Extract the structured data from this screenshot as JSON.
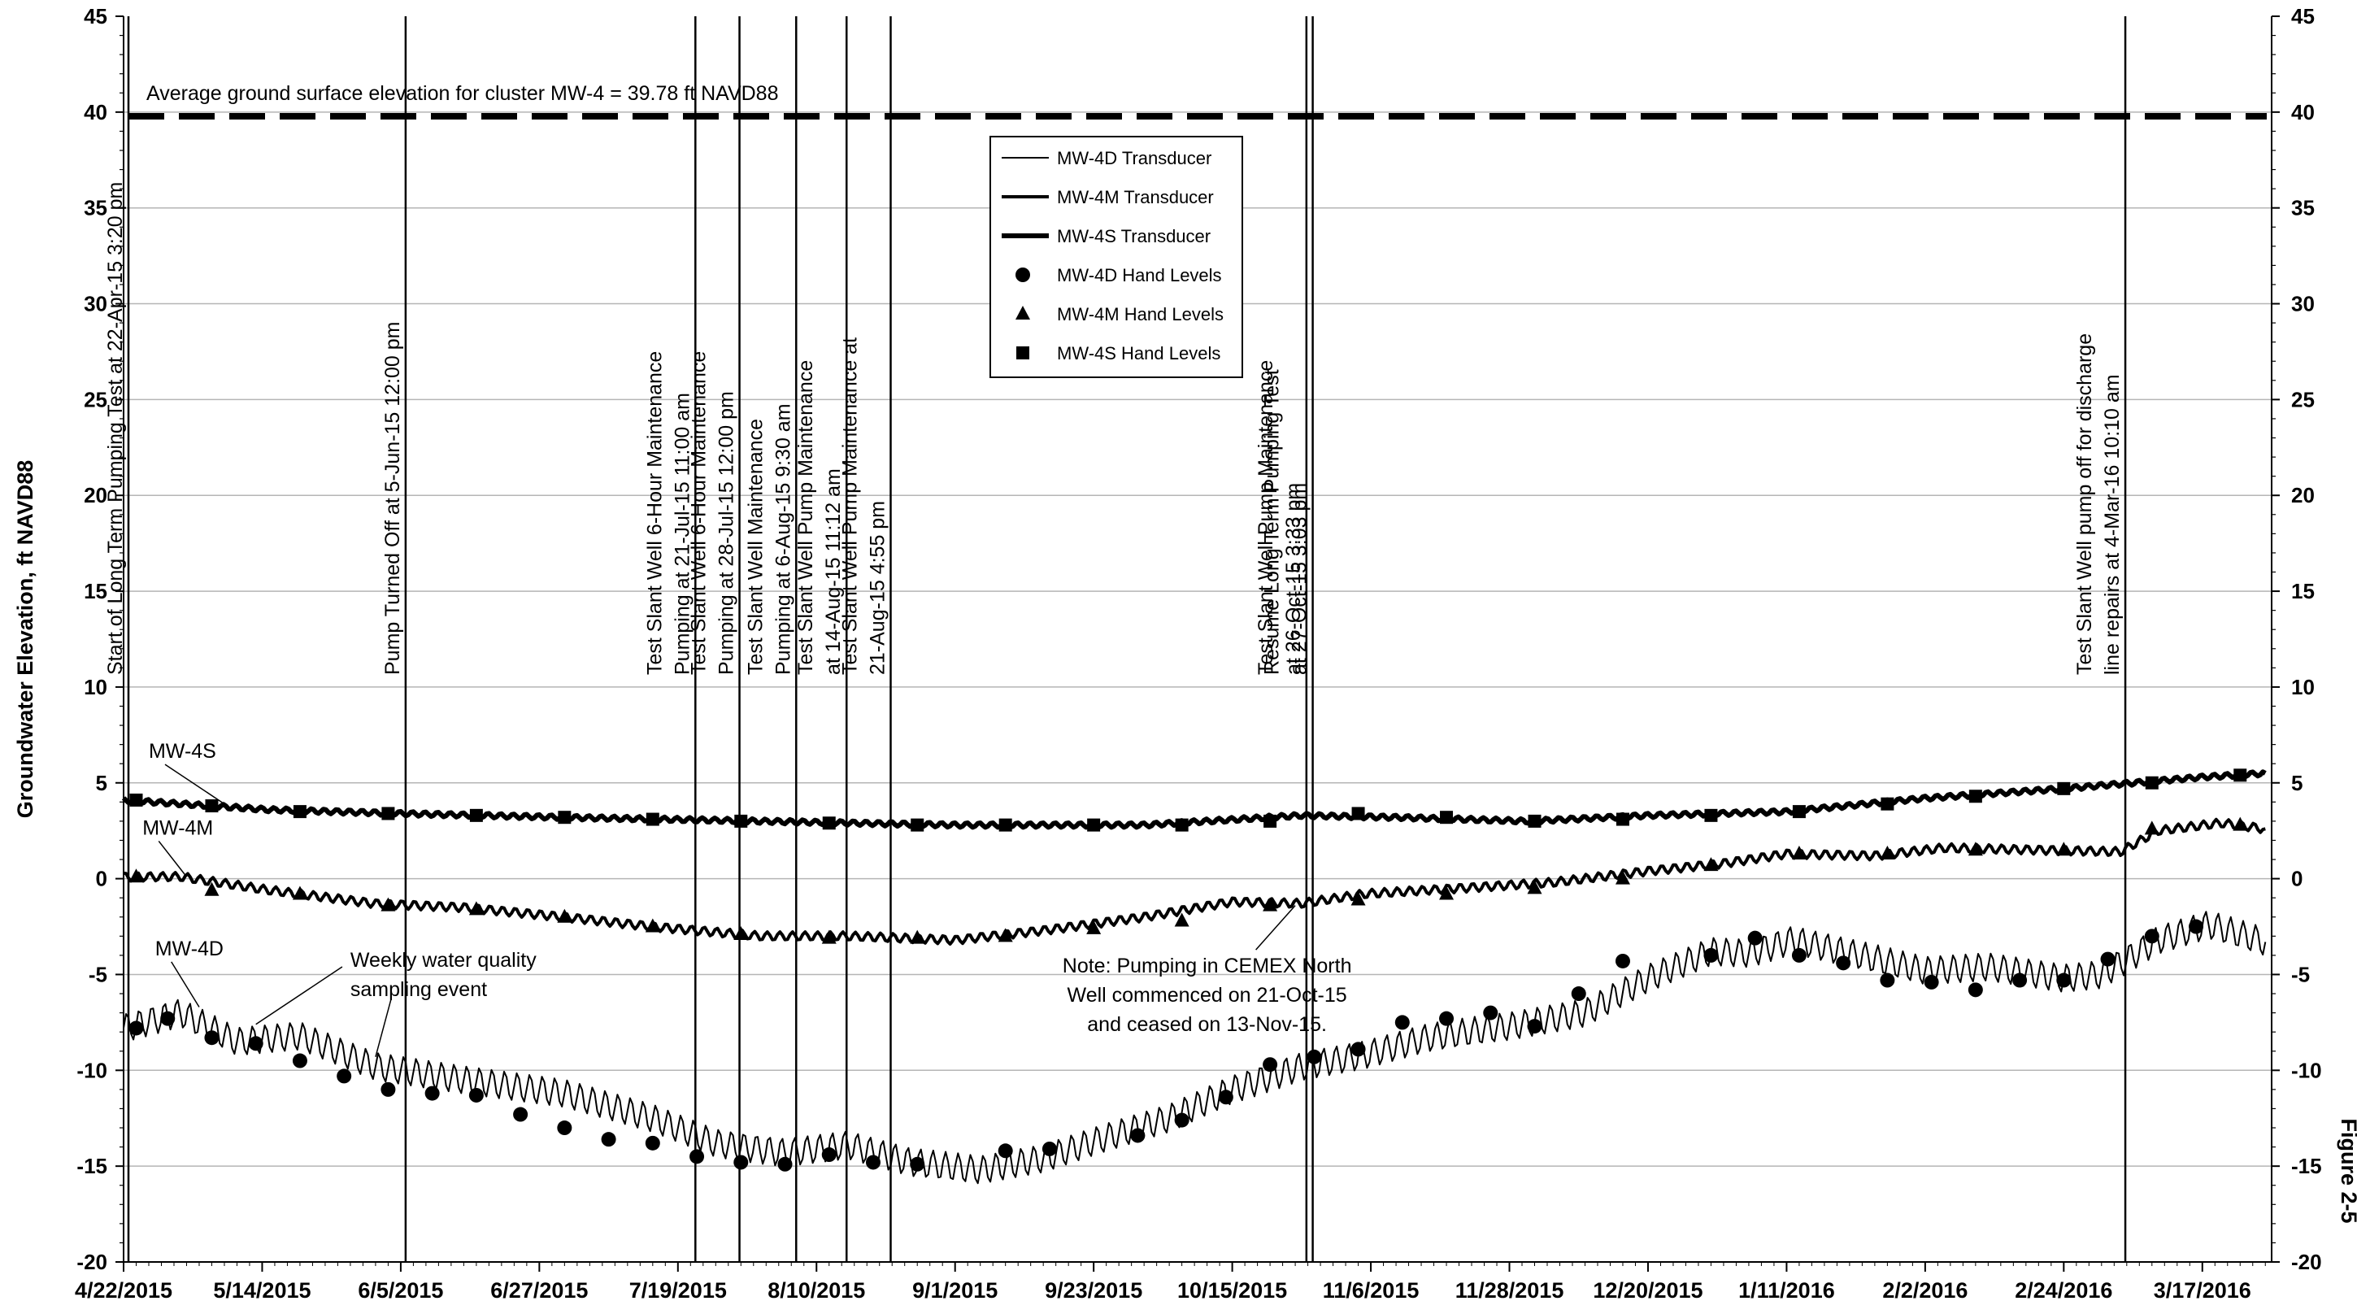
{
  "figure_label": "Figure 2-5",
  "chart_data": {
    "type": "line",
    "title": "",
    "xlabel": "",
    "ylabel": "Groundwater Elevation, ft NAVD88",
    "ylim": [
      -20,
      45
    ],
    "y_ticks": [
      -20,
      -15,
      -10,
      -5,
      0,
      5,
      10,
      15,
      20,
      25,
      30,
      35,
      40,
      45
    ],
    "xlim": [
      "2015-04-22",
      "2016-03-28"
    ],
    "x_ticks": [
      "2015-04-22",
      "2015-05-14",
      "2015-06-05",
      "2015-06-27",
      "2015-07-19",
      "2015-08-10",
      "2015-09-01",
      "2015-09-23",
      "2015-10-15",
      "2015-11-06",
      "2015-11-28",
      "2015-12-20",
      "2016-01-11",
      "2016-02-02",
      "2016-02-24",
      "2016-03-17"
    ],
    "x_tick_labels": [
      "4/22/2015",
      "5/14/2015",
      "6/5/2015",
      "6/27/2015",
      "7/19/2015",
      "8/10/2015",
      "9/1/2015",
      "9/23/2015",
      "10/15/2015",
      "11/6/2015",
      "11/28/2015",
      "12/20/2015",
      "1/11/2016",
      "2/2/2016",
      "2/24/2016",
      "3/17/2016"
    ],
    "grid": "horizontal",
    "secondary_y_axis": true,
    "ground_surface": {
      "label": "Average ground surface elevation for cluster MW-4 = 39.78 ft NAVD88",
      "value": 39.78
    },
    "events": [
      {
        "date": "2015-04-22",
        "lines": [
          "Start of Long Term Pumping Test at 22-Apr-15 3:20 pm"
        ]
      },
      {
        "date": "2015-06-05",
        "lines": [
          "Pump Turned Off at 5-Jun-15 12:00 pm"
        ]
      },
      {
        "date": "2015-07-21",
        "lines": [
          "Test Slant Well 6-Hour Maintenance",
          "Pumping at 21-Jul-15 11:00 am"
        ]
      },
      {
        "date": "2015-07-28",
        "lines": [
          "Test Slant Well 6-Hour Maintenance",
          "Pumping at 28-Jul-15 12:00 pm"
        ]
      },
      {
        "date": "2015-08-06",
        "lines": [
          "Test Slant Well Maintenance",
          "Pumping at 6-Aug-15 9:30 am"
        ]
      },
      {
        "date": "2015-08-14",
        "lines": [
          "Test Slant Well Pump Maintenance",
          "at 14-Aug-15 11:12 am"
        ]
      },
      {
        "date": "2015-08-21",
        "lines": [
          "Test Slant Well Pump Maintenance at",
          "21-Aug-15 4:55 pm"
        ]
      },
      {
        "date": "2015-10-26",
        "lines": [
          "Test Slant Well Pump Maintenance",
          "at 26-Oct-15 3:33 pm"
        ]
      },
      {
        "date": "2015-10-27",
        "lines": [
          "Resume Long Term Pumping Test",
          "at 27-Oct-15 3:03 pm"
        ]
      },
      {
        "date": "2016-03-04",
        "lines": [
          "Test Slant Well pump off for discharge",
          "line repairs at 4-Mar-16 10:10 am"
        ]
      }
    ],
    "series": [
      {
        "name": "MW-4D Transducer",
        "style": "thin",
        "color": "#000000",
        "x": [
          "2015-04-22",
          "2015-05-01",
          "2015-05-10",
          "2015-05-20",
          "2015-06-01",
          "2015-06-15",
          "2015-07-01",
          "2015-07-15",
          "2015-07-25",
          "2015-08-05",
          "2015-08-15",
          "2015-08-25",
          "2015-09-05",
          "2015-09-15",
          "2015-09-25",
          "2015-10-05",
          "2015-10-15",
          "2015-10-26",
          "2015-11-05",
          "2015-11-15",
          "2015-11-28",
          "2015-12-10",
          "2015-12-20",
          "2015-12-30",
          "2016-01-05",
          "2016-01-12",
          "2016-01-20",
          "2016-02-02",
          "2016-02-12",
          "2016-02-24",
          "2016-03-01",
          "2016-03-10",
          "2016-03-18",
          "2016-03-27"
        ],
        "y": [
          -7.8,
          -7.0,
          -8.5,
          -8.2,
          -9.8,
          -10.5,
          -11.2,
          -12.5,
          -13.8,
          -14.3,
          -13.9,
          -14.8,
          -15.2,
          -14.6,
          -13.5,
          -12.5,
          -11.0,
          -9.8,
          -9.2,
          -8.3,
          -7.7,
          -7.0,
          -5.2,
          -3.8,
          -3.9,
          -3.2,
          -3.8,
          -4.8,
          -4.6,
          -5.2,
          -5.0,
          -3.2,
          -2.4,
          -3.3
        ]
      },
      {
        "name": "MW-4M Transducer",
        "style": "medium",
        "color": "#000000",
        "x": [
          "2015-04-22",
          "2015-05-01",
          "2015-05-15",
          "2015-06-01",
          "2015-06-15",
          "2015-07-01",
          "2015-07-15",
          "2015-08-01",
          "2015-08-15",
          "2015-09-01",
          "2015-09-15",
          "2015-10-01",
          "2015-10-15",
          "2015-10-26",
          "2015-11-05",
          "2015-11-20",
          "2015-12-05",
          "2015-12-20",
          "2016-01-01",
          "2016-01-11",
          "2016-01-25",
          "2016-02-05",
          "2016-02-20",
          "2016-03-04",
          "2016-03-10",
          "2016-03-20",
          "2016-03-27"
        ],
        "y": [
          0.1,
          0.1,
          -0.6,
          -1.3,
          -1.5,
          -2.0,
          -2.5,
          -3.0,
          -3.0,
          -3.2,
          -2.7,
          -2.0,
          -1.2,
          -1.3,
          -0.8,
          -0.5,
          -0.2,
          0.4,
          0.8,
          1.3,
          1.2,
          1.6,
          1.5,
          1.4,
          2.5,
          2.9,
          2.6
        ]
      },
      {
        "name": "MW-4S Transducer",
        "style": "thick",
        "color": "#000000",
        "x": [
          "2015-04-22",
          "2015-05-15",
          "2015-06-05",
          "2015-07-01",
          "2015-08-01",
          "2015-09-01",
          "2015-10-01",
          "2015-10-26",
          "2015-11-10",
          "2015-12-01",
          "2015-12-20",
          "2016-01-11",
          "2016-02-02",
          "2016-02-24",
          "2016-03-17",
          "2016-03-27"
        ],
        "y": [
          4.1,
          3.6,
          3.4,
          3.2,
          3.0,
          2.8,
          2.8,
          3.3,
          3.2,
          3.0,
          3.3,
          3.5,
          4.2,
          4.7,
          5.3,
          5.5
        ]
      }
    ],
    "hand_levels": [
      {
        "name": "MW-4D Hand Levels",
        "marker": "circle",
        "x": [
          "2015-04-24",
          "2015-04-29",
          "2015-05-06",
          "2015-05-13",
          "2015-05-20",
          "2015-05-27",
          "2015-06-03",
          "2015-06-10",
          "2015-06-17",
          "2015-06-24",
          "2015-07-01",
          "2015-07-08",
          "2015-07-15",
          "2015-07-22",
          "2015-07-29",
          "2015-08-05",
          "2015-08-12",
          "2015-08-19",
          "2015-08-26",
          "2015-09-09",
          "2015-09-16",
          "2015-09-30",
          "2015-10-07",
          "2015-10-14",
          "2015-10-21",
          "2015-10-28",
          "2015-11-04",
          "2015-11-11",
          "2015-11-18",
          "2015-11-25",
          "2015-12-02",
          "2015-12-09",
          "2015-12-16",
          "2015-12-30",
          "2016-01-06",
          "2016-01-13",
          "2016-01-20",
          "2016-01-27",
          "2016-02-03",
          "2016-02-10",
          "2016-02-17",
          "2016-02-24",
          "2016-03-02",
          "2016-03-09",
          "2016-03-16"
        ],
        "y": [
          -7.8,
          -7.3,
          -8.3,
          -8.6,
          -9.5,
          -10.3,
          -11.0,
          -11.2,
          -11.3,
          -12.3,
          -13.0,
          -13.6,
          -13.8,
          -14.5,
          -14.8,
          -14.9,
          -14.4,
          -14.8,
          -14.9,
          -14.2,
          -14.1,
          -13.4,
          -12.6,
          -11.4,
          -9.7,
          -9.3,
          -8.9,
          -7.5,
          -7.3,
          -7.0,
          -7.7,
          -6.0,
          -4.3,
          -4.0,
          -3.1,
          -4.0,
          -4.4,
          -5.3,
          -5.4,
          -5.8,
          -5.3,
          -5.3,
          -4.2,
          -3.0,
          -2.5
        ]
      },
      {
        "name": "MW-4M Hand Levels",
        "marker": "triangle",
        "x": [
          "2015-04-24",
          "2015-05-06",
          "2015-05-20",
          "2015-06-03",
          "2015-06-17",
          "2015-07-01",
          "2015-07-15",
          "2015-07-29",
          "2015-08-12",
          "2015-08-26",
          "2015-09-09",
          "2015-09-23",
          "2015-10-07",
          "2015-10-21",
          "2015-11-04",
          "2015-11-18",
          "2015-12-02",
          "2015-12-16",
          "2015-12-30",
          "2016-01-13",
          "2016-01-27",
          "2016-02-10",
          "2016-02-24",
          "2016-03-09",
          "2016-03-23"
        ],
        "y": [
          0.1,
          -0.6,
          -0.8,
          -1.4,
          -1.6,
          -2.0,
          -2.5,
          -2.9,
          -3.1,
          -3.1,
          -3.0,
          -2.6,
          -2.2,
          -1.4,
          -1.1,
          -0.8,
          -0.5,
          0.0,
          0.7,
          1.3,
          1.3,
          1.5,
          1.5,
          2.6,
          2.8
        ]
      },
      {
        "name": "MW-4S Hand Levels",
        "marker": "square",
        "x": [
          "2015-04-24",
          "2015-05-06",
          "2015-05-20",
          "2015-06-03",
          "2015-06-17",
          "2015-07-01",
          "2015-07-15",
          "2015-07-29",
          "2015-08-12",
          "2015-08-26",
          "2015-09-09",
          "2015-09-23",
          "2015-10-07",
          "2015-10-21",
          "2015-11-04",
          "2015-11-18",
          "2015-12-02",
          "2015-12-16",
          "2015-12-30",
          "2016-01-13",
          "2016-01-27",
          "2016-02-10",
          "2016-02-24",
          "2016-03-09",
          "2016-03-23"
        ],
        "y": [
          4.1,
          3.8,
          3.5,
          3.4,
          3.3,
          3.2,
          3.1,
          3.0,
          2.9,
          2.8,
          2.8,
          2.8,
          2.8,
          3.0,
          3.4,
          3.2,
          3.0,
          3.1,
          3.3,
          3.5,
          3.9,
          4.3,
          4.7,
          5.0,
          5.4
        ]
      }
    ],
    "series_labels": [
      {
        "text": "MW-4S",
        "x": "2015-04-26",
        "y": 6.3,
        "arrow_to": [
          "2015-05-08",
          3.9
        ]
      },
      {
        "text": "MW-4M",
        "x": "2015-04-25",
        "y": 2.3,
        "arrow_to": [
          "2015-05-02",
          0.1
        ]
      },
      {
        "text": "MW-4D",
        "x": "2015-04-27",
        "y": -4.0,
        "arrow_to": [
          "2015-05-04",
          -6.7
        ]
      }
    ],
    "annotations": [
      {
        "lines": [
          "Weekly water quality",
          "sampling event"
        ],
        "x": "2015-05-28",
        "y": -4.6,
        "arrows_to": [
          [
            "2015-05-13",
            -7.6
          ],
          [
            "2015-06-01",
            -9.3
          ]
        ]
      },
      {
        "lines": [
          "Note: Pumping in CEMEX North",
          "Well commenced on 21-Oct-15",
          "and ceased on 13-Nov-15."
        ],
        "x": "2015-10-11",
        "y": -4.9,
        "arrow_to": [
          "2015-10-25",
          -1.4
        ]
      }
    ],
    "legend": {
      "placement": "top-center",
      "entries": [
        {
          "label": "MW-4D Transducer",
          "type": "line",
          "style": "thin"
        },
        {
          "label": "MW-4M Transducer",
          "type": "line",
          "style": "medium"
        },
        {
          "label": "MW-4S Transducer",
          "type": "line",
          "style": "thick"
        },
        {
          "label": "MW-4D Hand Levels",
          "type": "marker",
          "marker": "circle"
        },
        {
          "label": "MW-4M Hand Levels",
          "type": "marker",
          "marker": "triangle"
        },
        {
          "label": "MW-4S Hand Levels",
          "type": "marker",
          "marker": "square"
        }
      ]
    }
  }
}
